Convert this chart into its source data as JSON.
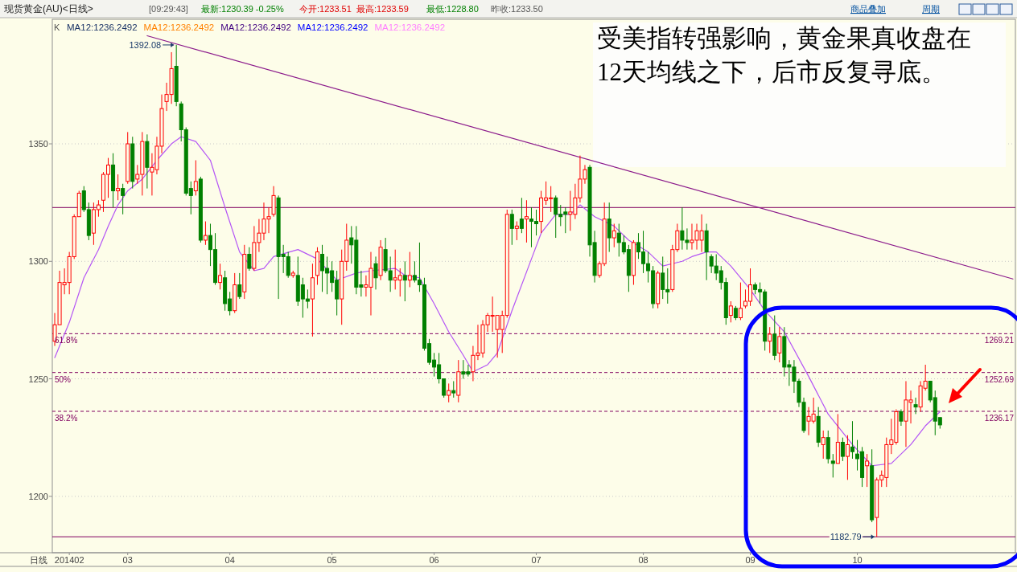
{
  "chart_data": {
    "type": "candlestick",
    "title": "现货黄金(AU)<日线>",
    "categories": [
      null,
      null,
      null,
      "201402",
      null,
      null,
      null,
      null,
      null,
      null,
      null,
      null,
      null,
      null,
      null,
      "03",
      null,
      null,
      null,
      null,
      null,
      null,
      null,
      null,
      null,
      null,
      null,
      null,
      null,
      null,
      null,
      null,
      null,
      null,
      null,
      null,
      "04",
      null,
      null,
      null,
      null,
      null,
      null,
      null,
      null,
      null,
      null,
      null,
      null,
      null,
      null,
      null,
      null,
      null,
      null,
      null,
      null,
      "05",
      null,
      null,
      null,
      null,
      null,
      null,
      null,
      null,
      null,
      null,
      null,
      null,
      null,
      null,
      null,
      null,
      null,
      null,
      null,
      null,
      "06",
      null,
      null,
      null,
      null,
      null,
      null,
      null,
      null,
      null,
      null,
      null,
      null,
      null,
      null,
      null,
      null,
      null,
      null,
      null,
      null,
      "07",
      null,
      null,
      null,
      null,
      null,
      null,
      null,
      null,
      null,
      null,
      null,
      null,
      null,
      null,
      null,
      null,
      null,
      null,
      null,
      null,
      null,
      "08",
      null,
      null,
      null,
      null,
      null,
      null,
      null,
      null,
      null,
      null,
      null,
      null,
      null,
      null,
      null,
      null,
      null,
      null,
      null,
      null,
      null,
      "09",
      null,
      null,
      null,
      null,
      null,
      null,
      null,
      null,
      null,
      null,
      null,
      null,
      null,
      null,
      null,
      null,
      null,
      null,
      null,
      null,
      null,
      "10",
      null,
      null,
      null,
      null,
      null,
      null,
      null,
      null,
      null,
      null,
      null,
      null,
      null,
      null,
      null,
      null,
      null,
      null,
      null,
      null,
      null,
      null,
      null,
      null,
      null,
      null,
      null,
      null,
      null,
      null,
      null,
      null
    ],
    "ohlc": [
      [
        1266,
        1278,
        1264,
        1273
      ],
      [
        1273,
        1296,
        1273,
        1291
      ],
      [
        1290,
        1297,
        1286,
        1291
      ],
      [
        1291,
        1304,
        1286,
        1302
      ],
      [
        1302,
        1320,
        1301,
        1319
      ],
      [
        1319,
        1330,
        1319,
        1329
      ],
      [
        1330,
        1332,
        1321,
        1322
      ],
      [
        1322,
        1325,
        1309,
        1311
      ],
      [
        1312,
        1325,
        1307,
        1322
      ],
      [
        1322,
        1326,
        1319,
        1324
      ],
      [
        1326,
        1338,
        1321,
        1337
      ],
      [
        1337,
        1344,
        1327,
        1341
      ],
      [
        1341,
        1346,
        1323,
        1330
      ],
      [
        1330,
        1337,
        1326,
        1331
      ],
      [
        1331,
        1333,
        1320,
        1328
      ],
      [
        1334,
        1355,
        1333,
        1350
      ],
      [
        1350,
        1353,
        1331,
        1334
      ],
      [
        1335,
        1341,
        1333,
        1337
      ],
      [
        1337,
        1355,
        1328,
        1351
      ],
      [
        1351,
        1354,
        1331,
        1340
      ],
      [
        1338,
        1346,
        1328,
        1340
      ],
      [
        1339,
        1353,
        1337,
        1349
      ],
      [
        1349,
        1371,
        1346,
        1365
      ],
      [
        1368,
        1376,
        1364,
        1371
      ],
      [
        1371,
        1389,
        1367,
        1382
      ],
      [
        1383,
        1392.08,
        1366,
        1368
      ],
      [
        1367,
        1368,
        1351,
        1356
      ],
      [
        1356,
        1357,
        1328,
        1329
      ],
      [
        1331,
        1334,
        1320,
        1328
      ],
      [
        1330,
        1343,
        1328,
        1334
      ],
      [
        1335,
        1336,
        1308,
        1309
      ],
      [
        1309,
        1317,
        1307,
        1311
      ],
      [
        1311,
        1316,
        1298,
        1305
      ],
      [
        1305,
        1312,
        1290,
        1291
      ],
      [
        1291,
        1299,
        1288,
        1294
      ],
      [
        1293,
        1296,
        1279,
        1282
      ],
      [
        1284,
        1287,
        1277,
        1279
      ],
      [
        1279,
        1295,
        1278,
        1290
      ],
      [
        1290,
        1295,
        1284,
        1285
      ],
      [
        1287,
        1307,
        1284,
        1303
      ],
      [
        1303,
        1306,
        1296,
        1297
      ],
      [
        1297,
        1315,
        1296,
        1308
      ],
      [
        1308,
        1318,
        1304,
        1312
      ],
      [
        1312,
        1325,
        1309,
        1318
      ],
      [
        1318,
        1323,
        1312,
        1319
      ],
      [
        1320,
        1332,
        1319,
        1328
      ],
      [
        1327,
        1328,
        1284,
        1302
      ],
      [
        1303,
        1307,
        1295,
        1302
      ],
      [
        1302,
        1304,
        1293,
        1294
      ],
      [
        1294,
        1296,
        1293,
        1295
      ],
      [
        1294,
        1302,
        1281,
        1283
      ],
      [
        1290,
        1293,
        1276,
        1284
      ],
      [
        1284,
        1288,
        1280,
        1283
      ],
      [
        1284,
        1299,
        1268,
        1293
      ],
      [
        1294,
        1306,
        1290,
        1304
      ],
      [
        1303,
        1307,
        1287,
        1296
      ],
      [
        1297,
        1302,
        1286,
        1295
      ],
      [
        1296,
        1300,
        1287,
        1291
      ],
      [
        1292,
        1296,
        1277,
        1284
      ],
      [
        1284,
        1305,
        1273,
        1300
      ],
      [
        1300,
        1316,
        1296,
        1309
      ],
      [
        1310,
        1315,
        1299,
        1307
      ],
      [
        1309,
        1315,
        1286,
        1289
      ],
      [
        1290,
        1296,
        1285,
        1289
      ],
      [
        1289,
        1294,
        1285,
        1290
      ],
      [
        1289,
        1304,
        1277,
        1297
      ],
      [
        1299,
        1302,
        1288,
        1293
      ],
      [
        1294,
        1309,
        1292,
        1306
      ],
      [
        1305,
        1310,
        1295,
        1296
      ],
      [
        1296,
        1302,
        1287,
        1292
      ],
      [
        1292,
        1305,
        1288,
        1293
      ],
      [
        1292,
        1297,
        1285,
        1294
      ],
      [
        1294,
        1300,
        1283,
        1292
      ],
      [
        1292,
        1304,
        1289,
        1294
      ],
      [
        1294,
        1300,
        1291,
        1292
      ],
      [
        1292,
        1308,
        1287,
        1290
      ],
      [
        1290,
        1293,
        1262,
        1263
      ],
      [
        1265,
        1267,
        1256,
        1257
      ],
      [
        1258,
        1261,
        1251,
        1255
      ],
      [
        1256,
        1261,
        1248,
        1250
      ],
      [
        1250,
        1250,
        1242,
        1243
      ],
      [
        1243,
        1248,
        1240,
        1245
      ],
      [
        1245,
        1249,
        1242,
        1244
      ],
      [
        1243,
        1258,
        1240,
        1253
      ],
      [
        1253,
        1258,
        1250,
        1252
      ],
      [
        1253,
        1256,
        1251,
        1252
      ],
      [
        1253,
        1264,
        1249,
        1260
      ],
      [
        1260,
        1273,
        1258,
        1261
      ],
      [
        1261,
        1275,
        1259,
        1273
      ],
      [
        1273,
        1278,
        1270,
        1277
      ],
      [
        1277,
        1285,
        1270,
        1277
      ],
      [
        1271,
        1277,
        1259,
        1277
      ],
      [
        1271,
        1279,
        1261,
        1277
      ],
      [
        1277,
        1322,
        1276,
        1320
      ],
      [
        1320,
        1322,
        1307,
        1314
      ],
      [
        1314,
        1317,
        1309,
        1315
      ],
      [
        1318,
        1327,
        1312,
        1314
      ],
      [
        1318,
        1326,
        1308,
        1319
      ],
      [
        1318,
        1323,
        1306,
        1317
      ],
      [
        1317,
        1322,
        1311,
        1316
      ],
      [
        1317,
        1330,
        1312,
        1327
      ],
      [
        1326,
        1334,
        1324,
        1327
      ],
      [
        1327,
        1332,
        1321,
        1327
      ],
      [
        1327,
        1328,
        1310,
        1320
      ],
      [
        1320,
        1324,
        1315,
        1319
      ],
      [
        1321,
        1323,
        1312,
        1320
      ],
      [
        1320,
        1330,
        1313,
        1321
      ],
      [
        1320,
        1333,
        1318,
        1327
      ],
      [
        1327,
        1345,
        1325,
        1335
      ],
      [
        1335,
        1341,
        1333,
        1339
      ],
      [
        1340,
        1341,
        1302,
        1307
      ],
      [
        1308,
        1313,
        1291,
        1294
      ],
      [
        1294,
        1300,
        1293,
        1299
      ],
      [
        1299,
        1325,
        1298,
        1318
      ],
      [
        1318,
        1325,
        1304,
        1310
      ],
      [
        1310,
        1316,
        1306,
        1313
      ],
      [
        1312,
        1316,
        1302,
        1308
      ],
      [
        1308,
        1311,
        1303,
        1304
      ],
      [
        1305,
        1307,
        1287,
        1294
      ],
      [
        1294,
        1309,
        1290,
        1308
      ],
      [
        1308,
        1312,
        1301,
        1304
      ],
      [
        1304,
        1313,
        1295,
        1299
      ],
      [
        1299,
        1304,
        1291,
        1296
      ],
      [
        1296,
        1298,
        1280,
        1282
      ],
      [
        1282,
        1296,
        1280,
        1295
      ],
      [
        1295,
        1302,
        1284,
        1288
      ],
      [
        1288,
        1297,
        1282,
        1287
      ],
      [
        1288,
        1307,
        1287,
        1305
      ],
      [
        1305,
        1316,
        1304,
        1313
      ],
      [
        1313,
        1323,
        1305,
        1309
      ],
      [
        1309,
        1314,
        1305,
        1308
      ],
      [
        1308,
        1316,
        1305,
        1309
      ],
      [
        1309,
        1316,
        1305,
        1313
      ],
      [
        1309,
        1320,
        1304,
        1313
      ],
      [
        1313,
        1316,
        1292,
        1304
      ],
      [
        1302,
        1303,
        1295,
        1298
      ],
      [
        1298,
        1303,
        1292,
        1295
      ],
      [
        1296,
        1298,
        1288,
        1291
      ],
      [
        1291,
        1293,
        1273,
        1276
      ],
      [
        1277,
        1283,
        1274,
        1281
      ],
      [
        1280,
        1281,
        1275,
        1276
      ],
      [
        1276,
        1291,
        1275,
        1280
      ],
      [
        1281,
        1288,
        1280,
        1283
      ],
      [
        1283,
        1297,
        1281,
        1290
      ],
      [
        1290,
        1291,
        1286,
        1288
      ],
      [
        1288,
        1291,
        1282,
        1287
      ],
      [
        1287,
        1288,
        1262,
        1266
      ],
      [
        1266,
        1272,
        1261,
        1269
      ],
      [
        1269,
        1277,
        1258,
        1260
      ],
      [
        1261,
        1272,
        1257,
        1268
      ],
      [
        1268,
        1272,
        1251,
        1255
      ],
      [
        1256,
        1258,
        1247,
        1255
      ],
      [
        1255,
        1258,
        1244,
        1249
      ],
      [
        1249,
        1250,
        1238,
        1240
      ],
      [
        1240,
        1242,
        1227,
        1228
      ],
      [
        1232,
        1238,
        1226,
        1234
      ],
      [
        1232,
        1242,
        1231,
        1235
      ],
      [
        1234,
        1238,
        1221,
        1223
      ],
      [
        1222,
        1228,
        1216,
        1225
      ],
      [
        1225,
        1228,
        1214,
        1216
      ],
      [
        1215,
        1218,
        1208,
        1214
      ],
      [
        1214,
        1235,
        1214,
        1223
      ],
      [
        1223,
        1225,
        1215,
        1217
      ],
      [
        1217,
        1226,
        1207,
        1222
      ],
      [
        1221,
        1232,
        1216,
        1219
      ],
      [
        1218,
        1224,
        1211,
        1216
      ],
      [
        1219,
        1221,
        1204,
        1208
      ],
      [
        1213,
        1218,
        1204,
        1215
      ],
      [
        1213,
        1220,
        1189,
        1190
      ],
      [
        1191,
        1208,
        1182.79,
        1207
      ],
      [
        1207,
        1211,
        1204,
        1209
      ],
      [
        1208,
        1225,
        1204,
        1222
      ],
      [
        1222,
        1233,
        1218,
        1224
      ],
      [
        1223,
        1237,
        1222,
        1236
      ],
      [
        1236,
        1237,
        1230,
        1232
      ],
      [
        1232,
        1249,
        1221,
        1241
      ],
      [
        1240,
        1245,
        1231,
        1241
      ],
      [
        1239,
        1242,
        1235,
        1238
      ],
      [
        1238,
        1249,
        1236,
        1247
      ],
      [
        1246,
        1256,
        1245,
        1249
      ],
      [
        1249,
        1249,
        1240,
        1241
      ],
      [
        1242,
        1245,
        1226,
        1232
      ],
      [
        1233.51,
        1233.59,
        1228.8,
        1230.39
      ],
      null,
      null,
      null,
      null,
      null,
      null,
      null,
      null,
      null,
      null,
      null,
      null,
      null,
      null,
      null
    ],
    "series": [
      {
        "type": "line",
        "color": "#b455f5",
        "values": [
          1259,
          null,
          null,
          1274,
          null,
          null,
          1293,
          null,
          null,
          1305,
          null,
          1315,
          null,
          1324,
          null,
          1330,
          null,
          null,
          1335,
          null,
          null,
          1343,
          null,
          null,
          1350,
          null,
          1353,
          null,
          null,
          1351,
          null,
          null,
          1343,
          null,
          null,
          1323,
          null,
          null,
          1304,
          null,
          null,
          1296,
          null,
          1297,
          null,
          1302,
          null,
          null,
          null,
          null,
          1305,
          null,
          null,
          null,
          1301,
          null,
          null,
          null,
          1292,
          null,
          null,
          null,
          1295,
          null,
          null,
          1296,
          null,
          null,
          null,
          null,
          1297,
          null,
          1294,
          null,
          null,
          1293,
          null,
          null,
          1282,
          null,
          null,
          1270,
          null,
          null,
          1260,
          null,
          1253,
          null,
          null,
          1256,
          null,
          1261,
          null,
          null,
          1279,
          null,
          null,
          null,
          1301,
          null,
          1312,
          null,
          null,
          1320,
          null,
          null,
          1320,
          null,
          1324,
          null,
          null,
          1319,
          null,
          null,
          null,
          1315,
          null,
          null,
          1309,
          null,
          null,
          null,
          1304,
          null,
          null,
          1298,
          null,
          null,
          null,
          1300,
          null,
          1302,
          null,
          null,
          1304,
          null,
          1304,
          null,
          null,
          1298,
          null,
          null,
          null,
          1288,
          null,
          null,
          1279,
          null,
          null,
          null,
          1270,
          null,
          null,
          null,
          null,
          1251,
          null,
          null,
          null,
          1235,
          null,
          null,
          null,
          null,
          1222,
          null,
          null,
          null,
          1213,
          null,
          null,
          null,
          1214,
          null,
          null,
          null,
          1222,
          null,
          null,
          1230,
          null,
          null,
          1236,
          null,
          null,
          null,
          null,
          null,
          null,
          null,
          null,
          null,
          null,
          null,
          null,
          null,
          null,
          null
        ]
      },
      {
        "type": "line",
        "color": "#8b1a8b",
        "values": [
          null,
          null,
          null,
          null,
          null,
          null,
          null,
          null,
          null,
          null,
          null,
          null,
          null,
          null,
          null,
          null,
          null,
          null,
          null,
          1396,
          null,
          null,
          null,
          null,
          null,
          null,
          null,
          null,
          null,
          null,
          null,
          null,
          null,
          null,
          null,
          null,
          null,
          null,
          null,
          null,
          null,
          null,
          null,
          null,
          null,
          null,
          null,
          null,
          null,
          null,
          null,
          null,
          null,
          null,
          null,
          null,
          null,
          null,
          null,
          null,
          null,
          null,
          null,
          null,
          null,
          null,
          null,
          null,
          null,
          null,
          null,
          null,
          null,
          null,
          null,
          null,
          null,
          null,
          null,
          null,
          null,
          null,
          null,
          null,
          null,
          null,
          null,
          null,
          null,
          null,
          null,
          null,
          null,
          null,
          null,
          null,
          null,
          null,
          null,
          null,
          null,
          null,
          null,
          null,
          null,
          null,
          null,
          null,
          null,
          null,
          null,
          null,
          null,
          null,
          null,
          null,
          null,
          null,
          null,
          null,
          null,
          null,
          null,
          null,
          null,
          null,
          null,
          null,
          null,
          null,
          null,
          null,
          null,
          null,
          null,
          null,
          null,
          null,
          null,
          null,
          null,
          null,
          null,
          null,
          null,
          null,
          null,
          null,
          null,
          null,
          null,
          null,
          null,
          null,
          null,
          null,
          null,
          null,
          null,
          null,
          null,
          null,
          null,
          null,
          null,
          null,
          null,
          null,
          null,
          null,
          null,
          null,
          null,
          null,
          null,
          null,
          null,
          null,
          null,
          null,
          null,
          null,
          null,
          null,
          null,
          null,
          null,
          null,
          null,
          null,
          null,
          null,
          null,
          null,
          null,
          null,
          null,
          1292.5
        ]
      }
    ],
    "ylim": [
      1176,
      1403
    ],
    "yticks": [
      1200,
      1250,
      1300,
      1350
    ],
    "grid": "y",
    "ref_lines": [
      {
        "axis": "y",
        "value": 1322.9,
        "color": "#800060",
        "line_style": "solid"
      },
      {
        "axis": "y",
        "value": 1269.21,
        "label": "1269.21",
        "color": "#800060",
        "line_style": "dashed"
      },
      {
        "axis": "y",
        "value": 1252.69,
        "label": "1252.69",
        "color": "#800060",
        "line_style": "dashed"
      },
      {
        "axis": "y",
        "value": 1236.17,
        "label": "1236.17",
        "color": "#800060",
        "line_style": "dashed"
      },
      {
        "axis": "y",
        "value": 1182.79,
        "color": "#800060",
        "line_style": "solid"
      }
    ],
    "annotations": [
      "[09:29:43]",
      "最新:1230.39 -0.25%",
      "今开:1233.51",
      "最高:1233.59",
      "最低:1228.80",
      "昨收:1233.50",
      "商品叠加",
      "周期",
      "K",
      "MA12:1236.2492",
      "MA12:1236.2492",
      "MA12:1236.2492",
      "MA12:1236.2492",
      "MA12:1236.2492",
      "受美指转强影响，黄金果真收盘在12天均线之下，后市反复寻底。",
      "日线",
      "61.8%",
      "50%",
      "38.2%",
      "1392.08",
      {
        "text": "1182.79",
        "y": 1182.79
      }
    ]
  }
}
